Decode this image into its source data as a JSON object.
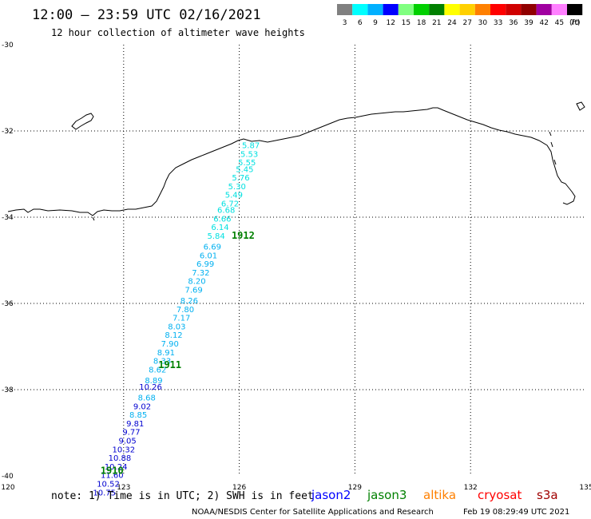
{
  "header": {
    "title": "12:00 – 23:59 UTC 02/16/2021",
    "subtitle": "12 hour collection of altimeter wave heights"
  },
  "scale": {
    "unit": "(ft)",
    "bins": [
      {
        "label": "3",
        "color": "#808080"
      },
      {
        "label": "6",
        "color": "#00ffff"
      },
      {
        "label": "9",
        "color": "#00b0ff"
      },
      {
        "label": "12",
        "color": "#0000ff"
      },
      {
        "label": "15",
        "color": "#80ff80"
      },
      {
        "label": "18",
        "color": "#00d000"
      },
      {
        "label": "21",
        "color": "#008000"
      },
      {
        "label": "24",
        "color": "#ffff00"
      },
      {
        "label": "27",
        "color": "#ffd000"
      },
      {
        "label": "30",
        "color": "#ff8000"
      },
      {
        "label": "33",
        "color": "#ff0000"
      },
      {
        "label": "36",
        "color": "#d00000"
      },
      {
        "label": "39",
        "color": "#900000"
      },
      {
        "label": "42",
        "color": "#a000a0"
      },
      {
        "label": "45",
        "color": "#ff80ff"
      },
      {
        "label": "70",
        "color": "#000000"
      }
    ]
  },
  "axes": {
    "x_ticks": [
      "120",
      "123",
      "126",
      "129",
      "132",
      "135"
    ],
    "y_ticks": [
      "-30",
      "-32",
      "-34",
      "-36",
      "-38",
      "-40"
    ],
    "x_values": [
      120,
      123,
      126,
      129,
      132,
      135
    ],
    "y_values": [
      -30,
      -32,
      -34,
      -36,
      -38,
      -40
    ]
  },
  "wave_heights": [
    {
      "lon": 126.3,
      "lat": -32.4,
      "value": "5.87",
      "color": "#00e0e0"
    },
    {
      "lon": 126.26,
      "lat": -32.6,
      "value": "5.53",
      "color": "#00e0e0"
    },
    {
      "lon": 126.2,
      "lat": -32.8,
      "value": "5.55",
      "color": "#00e0e0"
    },
    {
      "lon": 126.14,
      "lat": -32.95,
      "value": "5.45",
      "color": "#00e0e0"
    },
    {
      "lon": 126.04,
      "lat": -33.15,
      "value": "5.76",
      "color": "#00e0e0"
    },
    {
      "lon": 125.94,
      "lat": -33.35,
      "value": "5.30",
      "color": "#00e0e0"
    },
    {
      "lon": 125.86,
      "lat": -33.55,
      "value": "5.49",
      "color": "#00e0e0"
    },
    {
      "lon": 125.76,
      "lat": -33.75,
      "value": "6.72",
      "color": "#00e0e0"
    },
    {
      "lon": 125.66,
      "lat": -33.9,
      "value": "6.68",
      "color": "#00e0e0"
    },
    {
      "lon": 125.56,
      "lat": -34.1,
      "value": "6.66",
      "color": "#00e0e0"
    },
    {
      "lon": 125.5,
      "lat": -34.3,
      "value": "6.14",
      "color": "#00e0e0"
    },
    {
      "lon": 125.4,
      "lat": -34.5,
      "value": "5.84",
      "color": "#00e0e0"
    },
    {
      "lon": 125.3,
      "lat": -34.75,
      "value": "6.69",
      "color": "#00b0f0"
    },
    {
      "lon": 125.2,
      "lat": -34.95,
      "value": "6.01",
      "color": "#00b0f0"
    },
    {
      "lon": 125.12,
      "lat": -35.15,
      "value": "6.99",
      "color": "#00b0f0"
    },
    {
      "lon": 125.0,
      "lat": -35.35,
      "value": "7.32",
      "color": "#00b0f0"
    },
    {
      "lon": 124.9,
      "lat": -35.55,
      "value": "8.20",
      "color": "#00b0f0"
    },
    {
      "lon": 124.82,
      "lat": -35.75,
      "value": "7.69",
      "color": "#00b0f0"
    },
    {
      "lon": 124.7,
      "lat": -36.0,
      "value": "8.26",
      "color": "#00b0f0"
    },
    {
      "lon": 124.6,
      "lat": -36.2,
      "value": "7.80",
      "color": "#00b0f0"
    },
    {
      "lon": 124.5,
      "lat": -36.4,
      "value": "7.17",
      "color": "#00b0f0"
    },
    {
      "lon": 124.38,
      "lat": -36.6,
      "value": "8.03",
      "color": "#00b0f0"
    },
    {
      "lon": 124.3,
      "lat": -36.8,
      "value": "8.12",
      "color": "#00b0f0"
    },
    {
      "lon": 124.2,
      "lat": -37.0,
      "value": "7.90",
      "color": "#00b0f0"
    },
    {
      "lon": 124.1,
      "lat": -37.2,
      "value": "8.91",
      "color": "#00b0f0"
    },
    {
      "lon": 124.0,
      "lat": -37.4,
      "value": "8.33",
      "color": "#00b0f0"
    },
    {
      "lon": 123.88,
      "lat": -37.6,
      "value": "8.62",
      "color": "#00b0f0"
    },
    {
      "lon": 123.78,
      "lat": -37.85,
      "value": "8.89",
      "color": "#00b0f0"
    },
    {
      "lon": 123.7,
      "lat": -38.0,
      "value": "10.26",
      "color": "#0000d0"
    },
    {
      "lon": 123.6,
      "lat": -38.25,
      "value": "8.68",
      "color": "#00b0f0"
    },
    {
      "lon": 123.48,
      "lat": -38.45,
      "value": "9.02",
      "color": "#0000d0"
    },
    {
      "lon": 123.38,
      "lat": -38.65,
      "value": "8.85",
      "color": "#00b0f0"
    },
    {
      "lon": 123.3,
      "lat": -38.85,
      "value": "9.81",
      "color": "#0000d0"
    },
    {
      "lon": 123.2,
      "lat": -39.05,
      "value": "9.77",
      "color": "#0000d0"
    },
    {
      "lon": 123.1,
      "lat": -39.25,
      "value": "9.05",
      "color": "#0000d0"
    },
    {
      "lon": 123.0,
      "lat": -39.45,
      "value": "10.32",
      "color": "#0000d0"
    },
    {
      "lon": 122.9,
      "lat": -39.65,
      "value": "10.88",
      "color": "#0000d0"
    },
    {
      "lon": 122.8,
      "lat": -39.85,
      "value": "10.24",
      "color": "#0000d0"
    },
    {
      "lon": 122.7,
      "lat": -40.05,
      "value": "11.60",
      "color": "#0000d0"
    },
    {
      "lon": 122.6,
      "lat": -40.25,
      "value": "10.52",
      "color": "#0000d0"
    },
    {
      "lon": 122.5,
      "lat": -40.45,
      "value": "10.75",
      "color": "#0000d0"
    }
  ],
  "track_labels": [
    {
      "text": "1912",
      "lon": 125.8,
      "lat": -34.5
    },
    {
      "text": "1911",
      "lon": 123.9,
      "lat": -37.5
    },
    {
      "text": "1910",
      "lon": 122.4,
      "lat": -39.95
    }
  ],
  "footer": {
    "note": "note: 1) Time is in UTC; 2) SWH is in feet",
    "satellites": [
      {
        "name": "jason2",
        "color": "#0000ff"
      },
      {
        "name": "jason3",
        "color": "#008000"
      },
      {
        "name": "altika",
        "color": "#ff8000"
      },
      {
        "name": "cryosat",
        "color": "#ff0000"
      },
      {
        "name": "s3a",
        "color": "#a00000"
      }
    ],
    "credit": "NOAA/NESDIS Center for Satellite Applications and Research",
    "timestamp": "Feb 19 08:29:49 UTC 2021"
  }
}
